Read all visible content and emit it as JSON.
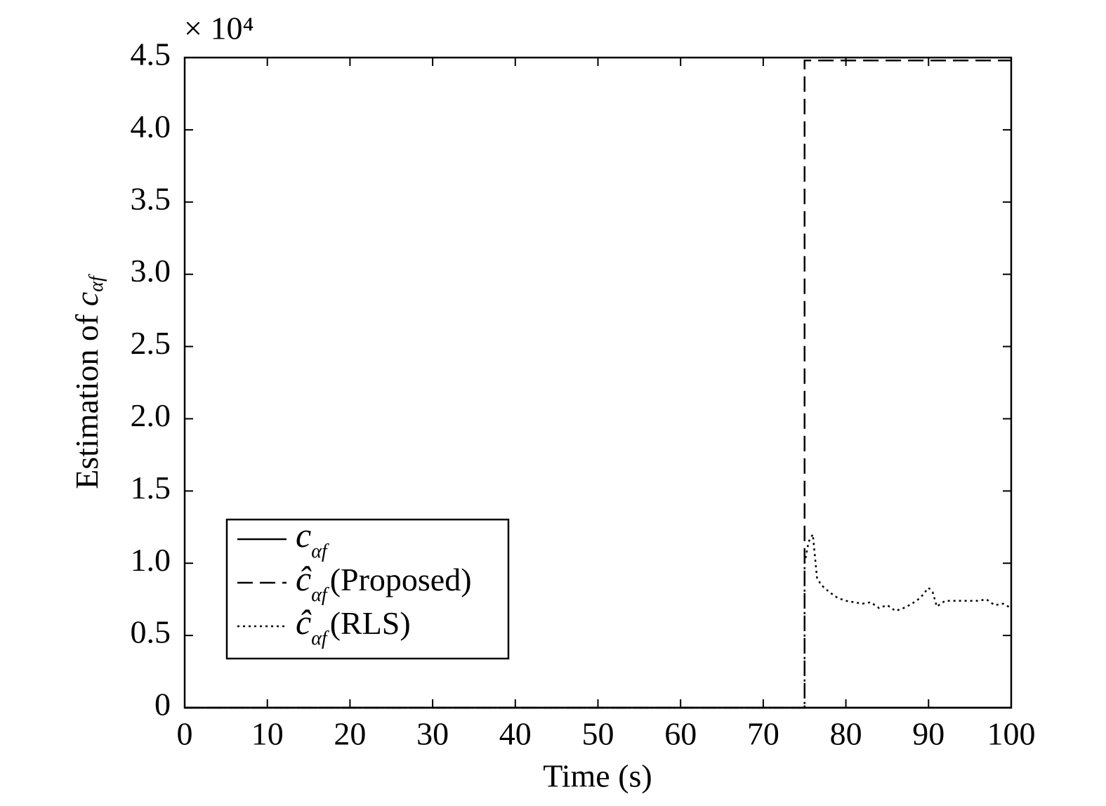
{
  "chart_data": {
    "type": "line",
    "y_multiplier": "× 10⁴",
    "xlabel": "Time (s)",
    "ylabel": {
      "text": "Estimation of ",
      "symbol": "c",
      "subscript": "αf"
    },
    "xlim": [
      0,
      100
    ],
    "xticks": [
      0,
      10,
      20,
      30,
      40,
      50,
      60,
      70,
      80,
      90,
      100
    ],
    "ylim": [
      0,
      4.5
    ],
    "yticks": [
      0,
      0.5,
      {
        "value": 1,
        "label": "1.0"
      },
      1.5,
      {
        "value": 2,
        "label": "2.0"
      },
      2.5,
      {
        "value": 3,
        "label": "3.0"
      },
      3.5,
      {
        "value": 4,
        "label": "4.0"
      },
      4.5
    ],
    "grid": false,
    "legend": "lower left",
    "series": [
      {
        "symbol": "c",
        "subscript": "αf",
        "color": "#000000",
        "dash": "solid",
        "x": [
          0,
          100
        ],
        "values": [
          0,
          0
        ]
      },
      {
        "symbol": "ĉ",
        "subscript": "αf",
        "suffix": "(Proposed)",
        "color": "#000000",
        "dash": "dashed",
        "x": [
          0,
          75,
          75,
          100
        ],
        "values": [
          0,
          0,
          4.48,
          4.48
        ]
      },
      {
        "symbol": "ĉ",
        "subscript": "αf",
        "suffix": "(RLS)",
        "color": "#000000",
        "dash": "dotted",
        "x": [
          0,
          75,
          75,
          75.5,
          76,
          76.5,
          77,
          78,
          79,
          80,
          82,
          83,
          84,
          85,
          86,
          87,
          88,
          89,
          90,
          90.5,
          91,
          92,
          94,
          96,
          97,
          98,
          99,
          100
        ],
        "values": [
          0,
          0,
          1.0,
          1.15,
          1.2,
          0.9,
          0.85,
          0.8,
          0.76,
          0.74,
          0.72,
          0.73,
          0.69,
          0.71,
          0.67,
          0.69,
          0.72,
          0.76,
          0.83,
          0.8,
          0.7,
          0.74,
          0.74,
          0.74,
          0.75,
          0.71,
          0.72,
          0.69
        ]
      }
    ]
  }
}
